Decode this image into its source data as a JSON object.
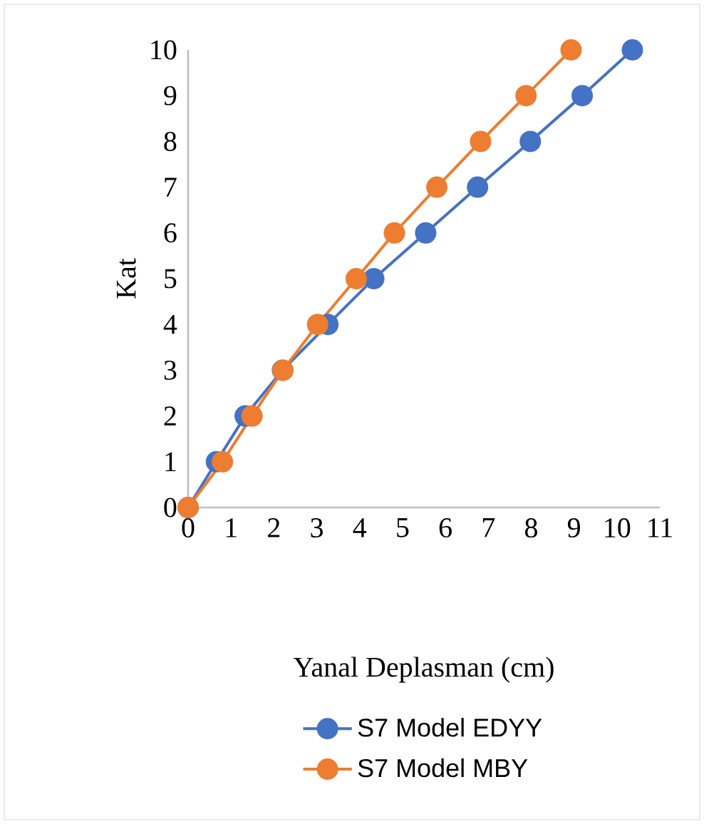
{
  "chart_data": {
    "type": "line",
    "xlabel": "Yanal Deplasman (cm)",
    "ylabel": "Kat",
    "xlim": [
      0,
      11
    ],
    "xticks": [
      0,
      1,
      2,
      3,
      4,
      5,
      6,
      7,
      8,
      9,
      10,
      11
    ],
    "ylim": [
      0,
      10
    ],
    "yticks": [
      0,
      1,
      2,
      3,
      4,
      5,
      6,
      7,
      8,
      9,
      10
    ],
    "grid": false,
    "legend": "bottom",
    "marker": "circle",
    "line_style": "solid",
    "series": [
      {
        "name": "S7 Model EDYY",
        "color": "#4472c4",
        "x": [
          0,
          0.66,
          1.33,
          2.2,
          3.26,
          4.33,
          5.54,
          6.75,
          7.98,
          9.19,
          10.36
        ],
        "values": [
          0,
          1,
          2,
          3,
          4,
          5,
          6,
          7,
          8,
          9,
          10
        ]
      },
      {
        "name": "S7 Model MBY",
        "color": "#ed7d31",
        "x": [
          0,
          0.8,
          1.49,
          2.21,
          3.02,
          3.92,
          4.81,
          5.8,
          6.82,
          7.88,
          8.93
        ],
        "values": [
          0,
          1,
          2,
          3,
          4,
          5,
          6,
          7,
          8,
          9,
          10
        ]
      }
    ]
  }
}
